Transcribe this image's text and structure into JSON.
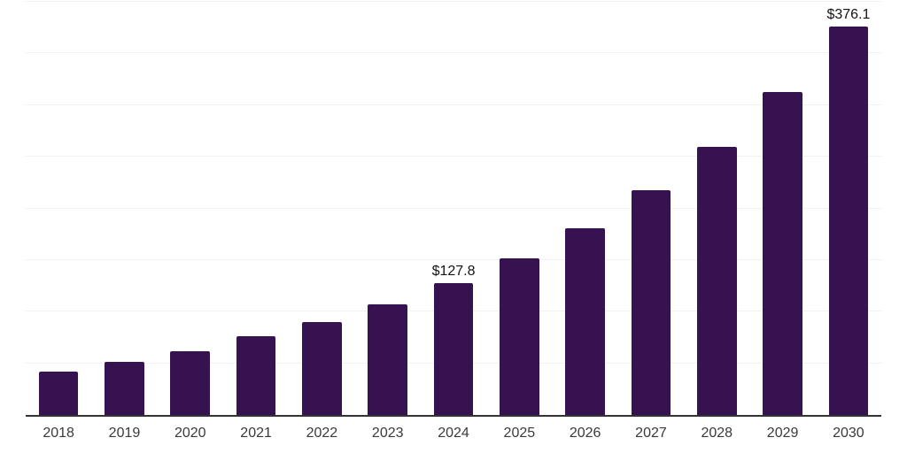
{
  "chart_data": {
    "type": "bar",
    "title": "",
    "xlabel": "",
    "ylabel": "",
    "categories": [
      "2018",
      "2019",
      "2020",
      "2021",
      "2022",
      "2023",
      "2024",
      "2025",
      "2026",
      "2027",
      "2028",
      "2029",
      "2030"
    ],
    "values": [
      42.2,
      51.2,
      61.7,
      76.5,
      90.0,
      107.4,
      127.8,
      151.6,
      180.9,
      217.5,
      259.4,
      313.0,
      376.1
    ],
    "annotations": [
      {
        "category": "2024",
        "text": "$127.8"
      },
      {
        "category": "2030",
        "text": "$376.1"
      }
    ],
    "ylim": [
      0,
      400
    ],
    "grid_step": 50,
    "grid": true,
    "legend": "none",
    "y_axis_tick_labels_visible": false,
    "colors": {
      "bar": "#371250",
      "gridline": "#f2f2f2",
      "axis_line": "#333333",
      "tick_label": "#3a3a3a",
      "annotation": "#141414",
      "background": "#ffffff"
    }
  }
}
